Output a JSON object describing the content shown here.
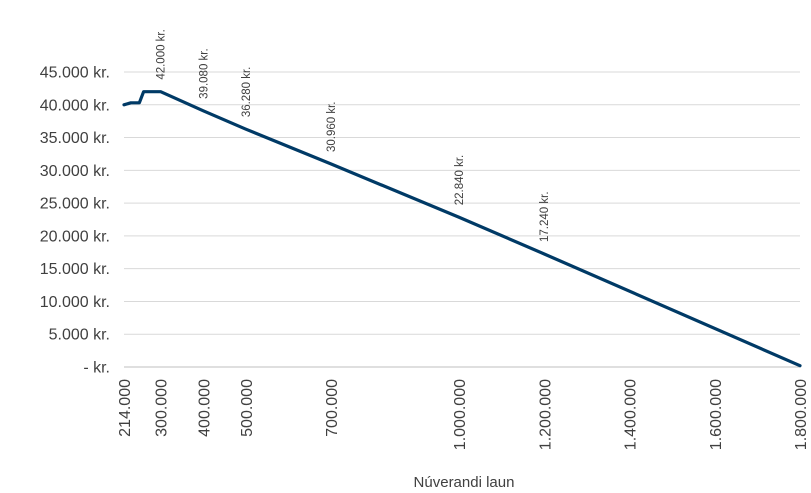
{
  "chart_data": {
    "type": "line",
    "xlabel": "Núverandi laun",
    "ylabel": "",
    "title": "",
    "ylim": [
      0,
      45000
    ],
    "xlim": [
      214000,
      1800000
    ],
    "grid": true,
    "legend": "none",
    "colors": {
      "series": "#003a66",
      "grid": "#d9d9d9",
      "text": "#404040"
    },
    "y_ticks": [
      {
        "value": 45000,
        "label": "45.000 kr."
      },
      {
        "value": 40000,
        "label": "40.000 kr."
      },
      {
        "value": 35000,
        "label": "35.000 kr."
      },
      {
        "value": 30000,
        "label": "30.000 kr."
      },
      {
        "value": 25000,
        "label": "25.000 kr."
      },
      {
        "value": 20000,
        "label": "20.000 kr."
      },
      {
        "value": 15000,
        "label": "15.000 kr."
      },
      {
        "value": 10000,
        "label": "10.000 kr."
      },
      {
        "value": 5000,
        "label": "5.000 kr."
      },
      {
        "value": 0,
        "label": "-   kr."
      }
    ],
    "x_ticks": [
      {
        "value": 214000,
        "label": "214.000"
      },
      {
        "value": 300000,
        "label": "300.000"
      },
      {
        "value": 400000,
        "label": "400.000"
      },
      {
        "value": 500000,
        "label": "500.000"
      },
      {
        "value": 700000,
        "label": "700.000"
      },
      {
        "value": 1000000,
        "label": "1.000.000"
      },
      {
        "value": 1200000,
        "label": "1.200.000"
      },
      {
        "value": 1400000,
        "label": "1.400.000"
      },
      {
        "value": 1600000,
        "label": "1.600.000"
      },
      {
        "value": 1800000,
        "label": "1.800.000"
      }
    ],
    "series": [
      {
        "x": [
          214000,
          230000,
          250000,
          260000,
          300000,
          400000,
          500000,
          700000,
          1000000,
          1200000,
          1800000
        ],
        "y": [
          40000,
          40300,
          40300,
          42000,
          42000,
          39080,
          36280,
          30960,
          22840,
          17240,
          200
        ]
      }
    ],
    "data_labels": [
      {
        "x": 300000,
        "y": 42000,
        "label": "42.000 kr."
      },
      {
        "x": 400000,
        "y": 39080,
        "label": "39.080 kr."
      },
      {
        "x": 500000,
        "y": 36280,
        "label": "36.280 kr."
      },
      {
        "x": 700000,
        "y": 30960,
        "label": "30.960 kr."
      },
      {
        "x": 1000000,
        "y": 22840,
        "label": "22.840 kr."
      },
      {
        "x": 1200000,
        "y": 17240,
        "label": "17.240 kr."
      }
    ]
  }
}
